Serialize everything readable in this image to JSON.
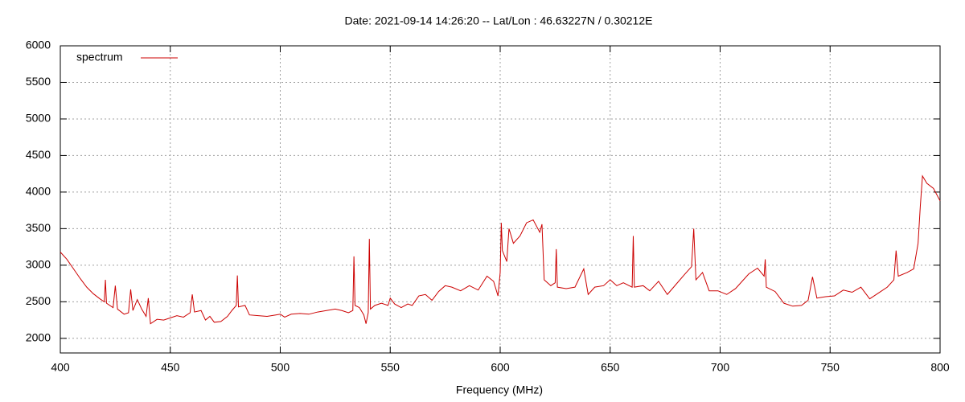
{
  "chart_data": {
    "type": "line",
    "title": "Date: 2021-09-14 14:26:20  --  Lat/Lon : 46.63227N / 0.30212E",
    "x_label": "Frequency (MHz)",
    "xlim": [
      400,
      800
    ],
    "ylim": [
      1800,
      6000
    ],
    "xticks": [
      400,
      450,
      500,
      550,
      600,
      650,
      700,
      750,
      800
    ],
    "yticks": [
      2000,
      2500,
      3000,
      3500,
      4000,
      4500,
      5000,
      5500,
      6000
    ],
    "grid": true,
    "legend": "top-left",
    "x": [
      400,
      403,
      406,
      409,
      412,
      415,
      418,
      420,
      420.5,
      421,
      424,
      425,
      426,
      429,
      431,
      432,
      433,
      435,
      437,
      439,
      440,
      441,
      444,
      447,
      450,
      453,
      456,
      459,
      460,
      461,
      464,
      466,
      468,
      470,
      473,
      476,
      478,
      480,
      480.5,
      481,
      484,
      486,
      490,
      494,
      498,
      500,
      502,
      505,
      509,
      513,
      517,
      521,
      525,
      528,
      531,
      533,
      533.5,
      534,
      536,
      538,
      539,
      540,
      540.5,
      541,
      543,
      546,
      549,
      550,
      552,
      555,
      558,
      560,
      563,
      566,
      569,
      572,
      575,
      578,
      582,
      586,
      590,
      594,
      597,
      599,
      600,
      600.5,
      601,
      603,
      604,
      606,
      609,
      612,
      615,
      618,
      619,
      620,
      623,
      625,
      625.5,
      626,
      630,
      634,
      638,
      640,
      643,
      647,
      650,
      653,
      656,
      660,
      660.5,
      661,
      665,
      668,
      672,
      676,
      680,
      684,
      687,
      688,
      689,
      692,
      695,
      699,
      703,
      707,
      710,
      713,
      717,
      720,
      720.5,
      721,
      725,
      729,
      733,
      737,
      740,
      742,
      744,
      748,
      752,
      756,
      760,
      764,
      768,
      772,
      776,
      779,
      780,
      781,
      785,
      788,
      790,
      791,
      792,
      794,
      797,
      800
    ],
    "series": [
      {
        "name": "spectrum",
        "color": "#cc0000",
        "values": [
          3180,
          3080,
          2950,
          2820,
          2700,
          2610,
          2540,
          2500,
          2800,
          2480,
          2420,
          2720,
          2400,
          2330,
          2350,
          2670,
          2380,
          2530,
          2400,
          2300,
          2550,
          2200,
          2260,
          2250,
          2280,
          2310,
          2290,
          2350,
          2600,
          2360,
          2380,
          2250,
          2300,
          2220,
          2230,
          2300,
          2380,
          2450,
          2860,
          2430,
          2450,
          2320,
          2310,
          2300,
          2320,
          2330,
          2290,
          2330,
          2340,
          2330,
          2360,
          2380,
          2400,
          2380,
          2350,
          2380,
          3120,
          2450,
          2420,
          2320,
          2200,
          2350,
          3360,
          2400,
          2450,
          2480,
          2450,
          2550,
          2470,
          2420,
          2470,
          2450,
          2580,
          2600,
          2520,
          2640,
          2720,
          2700,
          2650,
          2720,
          2660,
          2850,
          2780,
          2580,
          2900,
          3580,
          3200,
          3050,
          3500,
          3300,
          3400,
          3580,
          3620,
          3450,
          3560,
          2800,
          2720,
          2760,
          3220,
          2700,
          2680,
          2700,
          2950,
          2600,
          2700,
          2720,
          2800,
          2720,
          2760,
          2700,
          3400,
          2700,
          2720,
          2650,
          2780,
          2600,
          2740,
          2880,
          2980,
          3500,
          2800,
          2900,
          2650,
          2650,
          2600,
          2680,
          2780,
          2880,
          2960,
          2850,
          3080,
          2700,
          2640,
          2480,
          2440,
          2450,
          2520,
          2840,
          2550,
          2570,
          2580,
          2660,
          2630,
          2700,
          2540,
          2620,
          2700,
          2800,
          3200,
          2850,
          2900,
          2950,
          3300,
          3800,
          4220,
          4120,
          4050,
          3880
        ]
      }
    ]
  }
}
